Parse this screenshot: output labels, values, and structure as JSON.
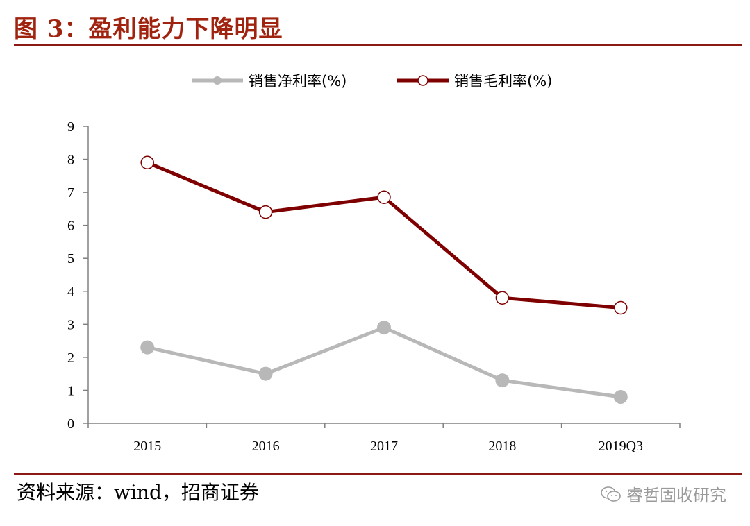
{
  "figure": {
    "title": "图 3：盈利能力下降明显",
    "source": "资料来源：wind，招商证券",
    "watermark": "睿哲固收研究",
    "watermark_icon": "wechat-icon",
    "accent_color": "#8c1a14"
  },
  "chart_data": {
    "type": "line",
    "categories": [
      "2015",
      "2016",
      "2017",
      "2018",
      "2019Q3"
    ],
    "series": [
      {
        "name": "销售净利率(%)",
        "color": "#b8b8b8",
        "marker": "filled-circle",
        "values": [
          2.3,
          1.5,
          2.9,
          1.3,
          0.8
        ]
      },
      {
        "name": "销售毛利率(%)",
        "color": "#7f0000",
        "marker": "hollow-circle",
        "values": [
          7.9,
          6.4,
          6.85,
          3.8,
          3.5
        ]
      }
    ],
    "ylim": [
      0,
      9
    ],
    "yticks": [
      "0",
      "1",
      "2",
      "3",
      "4",
      "5",
      "6",
      "7",
      "8",
      "9"
    ],
    "xlabel": "",
    "ylabel": "",
    "grid": false,
    "legend": "top-center"
  }
}
